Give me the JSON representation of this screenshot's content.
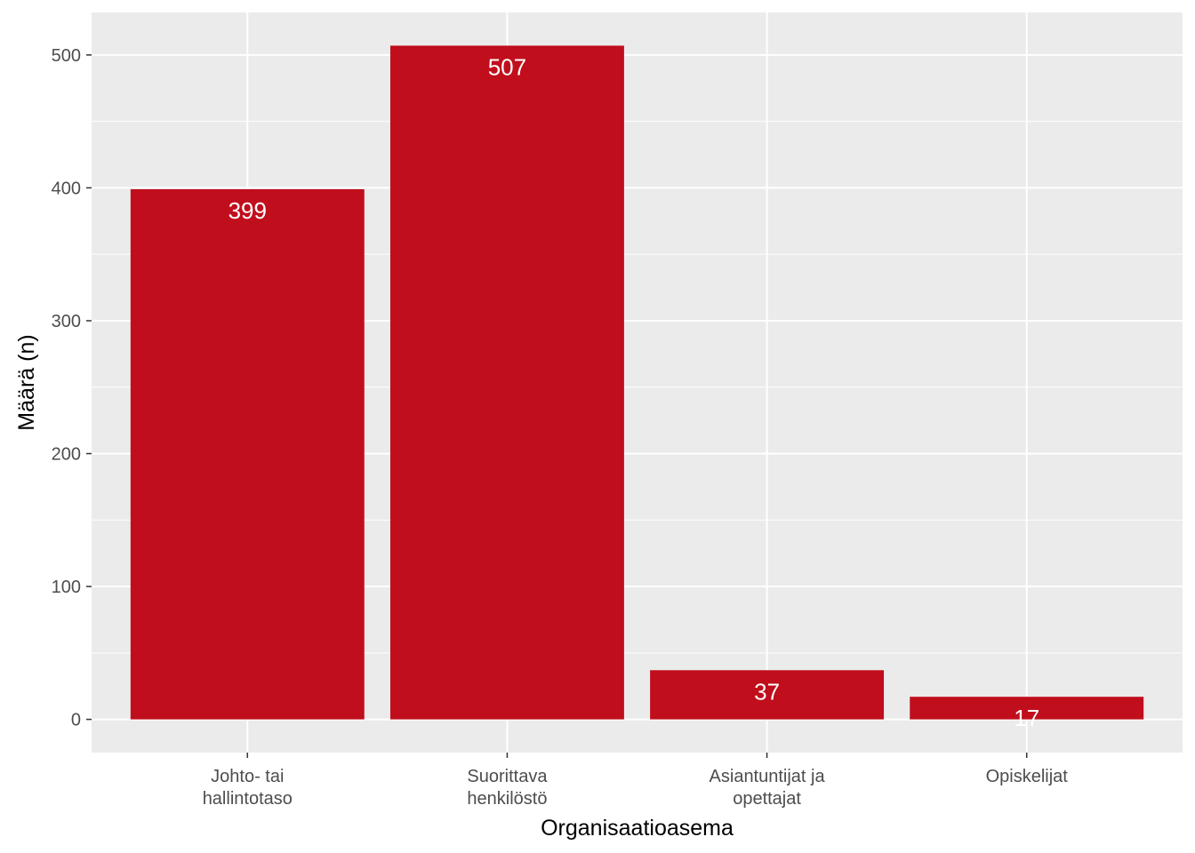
{
  "chart_data": {
    "type": "bar",
    "categories": [
      [
        "Johto- tai",
        "hallintotaso"
      ],
      [
        "Suorittava",
        "henkilöstö"
      ],
      [
        "Asiantuntijat ja",
        "opettajat"
      ],
      [
        "Opiskelijat"
      ]
    ],
    "values": [
      399,
      507,
      37,
      17
    ],
    "data_labels": [
      "399",
      "507",
      "37",
      "17"
    ],
    "xlabel": "Organisaatioasema",
    "ylabel": "Määrä (n)",
    "ylim": [
      -25,
      532
    ],
    "yticks": [
      0,
      100,
      200,
      300,
      400,
      500
    ],
    "ytick_labels": [
      "0",
      "100",
      "200",
      "300",
      "400",
      "500"
    ],
    "grid": true,
    "legend": "none",
    "colors": {
      "bar": "#c00e1c",
      "panel": "#ebebeb",
      "grid": "#ffffff",
      "bar_label": "#ffffff",
      "tick_text": "#4d4d4d",
      "tick_mark": "#333333"
    }
  }
}
